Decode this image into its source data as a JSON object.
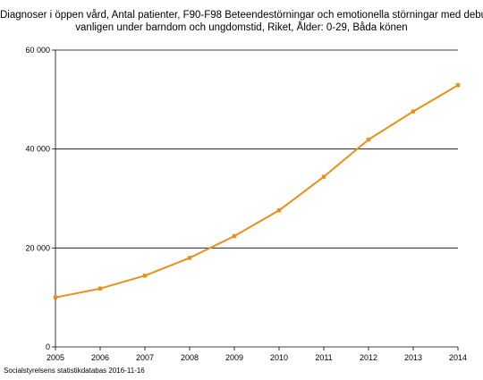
{
  "chart_data": {
    "type": "line",
    "title_lines": [
      "Diagnoser i öppen vård, Antal patienter, F90-F98 Beteendestörningar och emotionella störningar med debut",
      "vanligen under barndom och ungdomstid, Riket, Ålder: 0-29, Båda könen"
    ],
    "x": [
      2005,
      2006,
      2007,
      2008,
      2009,
      2010,
      2011,
      2012,
      2013,
      2014
    ],
    "x_tick_labels": [
      "2005",
      "2006",
      "2007",
      "2008",
      "2009",
      "2010",
      "2011",
      "2012",
      "2013",
      "2014"
    ],
    "series": [
      {
        "values": [
          10000,
          11800,
          14400,
          18000,
          22400,
          27600,
          34400,
          41900,
          47600,
          52900
        ]
      }
    ],
    "ylim": [
      0,
      60000
    ],
    "y_ticks": [
      0,
      20000,
      40000,
      60000
    ],
    "y_tick_labels": [
      "0",
      "20 000",
      "40 000",
      "60 000"
    ],
    "grid": "horizontal",
    "legend": "none",
    "colors": {
      "line": "#E8901C",
      "grid": "#000000",
      "axis": "#000000"
    }
  },
  "source": "Socialstyrelsens statistikdatabas 2016-11-16"
}
